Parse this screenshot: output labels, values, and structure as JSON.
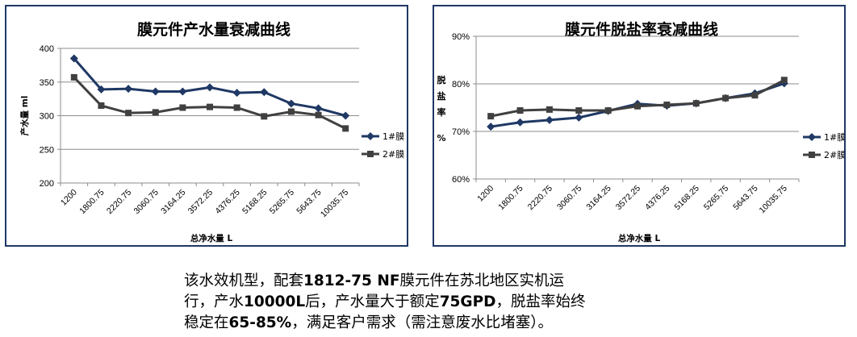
{
  "chart_data": [
    {
      "type": "line",
      "title": "膜元件产水量衰减曲线",
      "xlabel": "总净水量 L",
      "ylabel": "产水量 ml",
      "ylim": [
        200,
        400
      ],
      "yticks": [
        "200",
        "250",
        "300",
        "350",
        "400"
      ],
      "categories": [
        "1200",
        "1800.75",
        "2220.75",
        "3060.75",
        "3164.25",
        "3572.25",
        "4376.25",
        "5168.25",
        "5265.75",
        "5643.75",
        "10035.75"
      ],
      "series": [
        {
          "name": "1#膜",
          "color": "#1f3864",
          "marker": "diamond",
          "values": [
            385,
            339,
            340,
            336,
            336,
            342,
            334,
            335,
            318,
            311,
            300
          ]
        },
        {
          "name": "2#膜",
          "color": "#404040",
          "marker": "square",
          "values": [
            357,
            315,
            304,
            305,
            312,
            313,
            312,
            299,
            306,
            301,
            281
          ]
        }
      ],
      "grid": "horizontal",
      "legend": "right"
    },
    {
      "type": "line",
      "title": "膜元件脱盐率衰减曲线",
      "xlabel": "总净水量 L",
      "ylabel": "脱盐率 %",
      "ylim": [
        60,
        90
      ],
      "yticks": [
        "60%",
        "70%",
        "80%",
        "90%"
      ],
      "categories": [
        "1200",
        "1800.75",
        "2220.75",
        "3060.75",
        "3164.25",
        "3572.25",
        "4376.25",
        "5168.25",
        "5265.75",
        "5643.75",
        "10035.75"
      ],
      "series": [
        {
          "name": "1#膜",
          "color": "#1f3864",
          "marker": "diamond",
          "values": [
            71.0,
            71.9,
            72.4,
            72.9,
            74.3,
            75.8,
            75.4,
            75.9,
            77.0,
            78.0,
            80.1
          ]
        },
        {
          "name": "2#膜",
          "color": "#404040",
          "marker": "square",
          "values": [
            73.2,
            74.4,
            74.6,
            74.4,
            74.4,
            75.3,
            75.6,
            75.9,
            77.0,
            77.6,
            80.8
          ]
        }
      ],
      "grid": "horizontal",
      "legend": "right"
    }
  ],
  "caption": {
    "line1": [
      "该水效机型，配套",
      "1812-75 NF",
      "膜元件在苏北地区实机运"
    ],
    "line2": [
      "行，产水",
      "10000L",
      "后，产水量大于额定",
      "75GPD",
      "，脱盐率始终"
    ],
    "line3": [
      "稳定在",
      "65-85%",
      "，满足客户需求（需注意废水比堵塞）。"
    ]
  }
}
